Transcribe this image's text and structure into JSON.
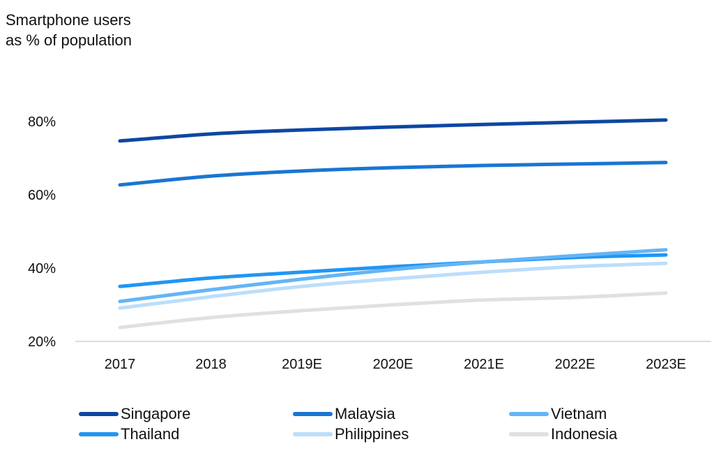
{
  "chart_data": {
    "type": "line",
    "ylabel": "Smartphone users as % of population",
    "xlabel": "",
    "categories": [
      "2017",
      "2018",
      "2019E",
      "2020E",
      "2021E",
      "2022E",
      "2023E"
    ],
    "yticks": [
      20,
      40,
      60,
      80
    ],
    "ytick_labels": [
      "20%",
      "40%",
      "60%",
      "80%"
    ],
    "ylim": [
      20,
      85
    ],
    "grid": false,
    "legend_position": "bottom",
    "series": [
      {
        "name": "Singapore",
        "color": "#0d47a1",
        "values": [
          74.7,
          76.6,
          77.7,
          78.5,
          79.2,
          79.8,
          80.4
        ]
      },
      {
        "name": "Malaysia",
        "color": "#1976d2",
        "values": [
          62.7,
          65.1,
          66.5,
          67.4,
          68.0,
          68.4,
          68.8
        ]
      },
      {
        "name": "Vietnam",
        "color": "#64b5f6",
        "values": [
          30.9,
          34.1,
          37.0,
          39.6,
          41.7,
          43.4,
          45.0
        ]
      },
      {
        "name": "Thailand",
        "color": "#2196f3",
        "values": [
          35.0,
          37.3,
          38.9,
          40.4,
          41.7,
          42.9,
          43.6
        ]
      },
      {
        "name": "Philippines",
        "color": "#bbdefb",
        "values": [
          29.1,
          32.2,
          35.0,
          37.1,
          38.9,
          40.4,
          41.3
        ]
      },
      {
        "name": "Indonesia",
        "color": "#e0e0e0",
        "values": [
          23.8,
          26.5,
          28.4,
          30.0,
          31.3,
          32.0,
          33.2
        ]
      }
    ]
  }
}
